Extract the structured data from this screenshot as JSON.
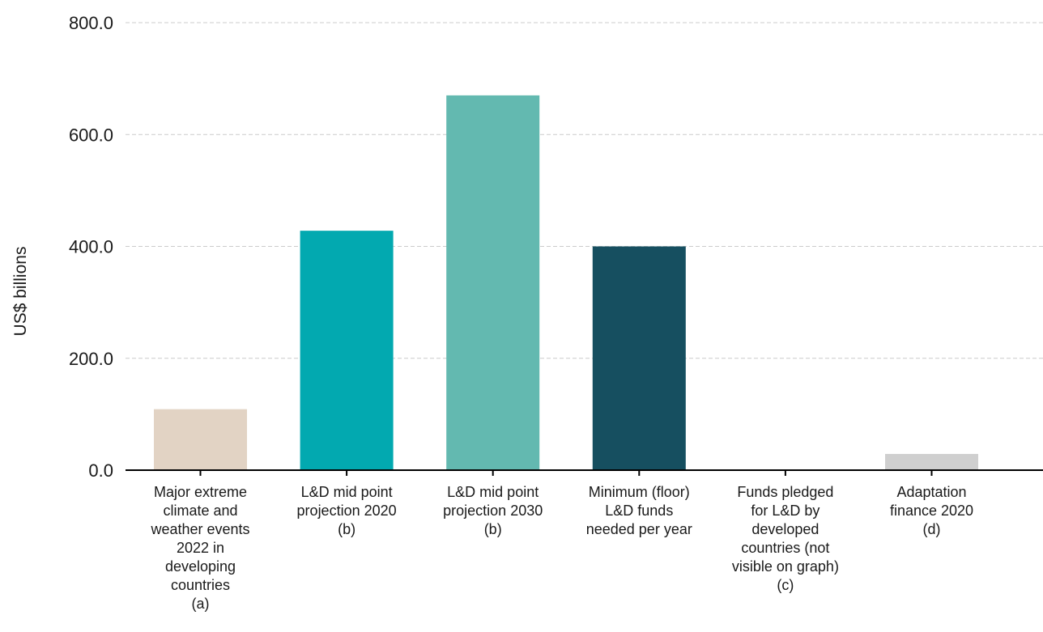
{
  "chart_data": {
    "type": "bar",
    "ylabel": "US$  billions",
    "ylim": [
      0,
      800
    ],
    "yticks": [
      "0.0",
      "200.0",
      "400.0",
      "600.0",
      "800.0"
    ],
    "ytick_values": [
      0,
      200,
      400,
      600,
      800
    ],
    "grid": true,
    "categories": [
      [
        "Major extreme",
        "climate and",
        "weather events",
        "2022 in",
        "developing",
        "countries",
        "(a)"
      ],
      [
        "L&D mid point",
        "projection 2020",
        "(b)"
      ],
      [
        "L&D mid point",
        "projection 2030",
        "(b)"
      ],
      [
        "Minimum (floor)",
        "L&D funds",
        "needed per year"
      ],
      [
        "Funds pledged",
        "for L&D by",
        "developed",
        "countries (not",
        "visible on graph)",
        "(c)"
      ],
      [
        "Adaptation",
        "finance 2020",
        "(d)"
      ]
    ],
    "values": [
      109,
      428,
      670,
      400,
      0.4,
      29
    ],
    "colors": [
      "#e2d3c4",
      "#02a9b0",
      "#63b9b0",
      "#164f60",
      "#164f60",
      "#cfcfcf"
    ]
  }
}
